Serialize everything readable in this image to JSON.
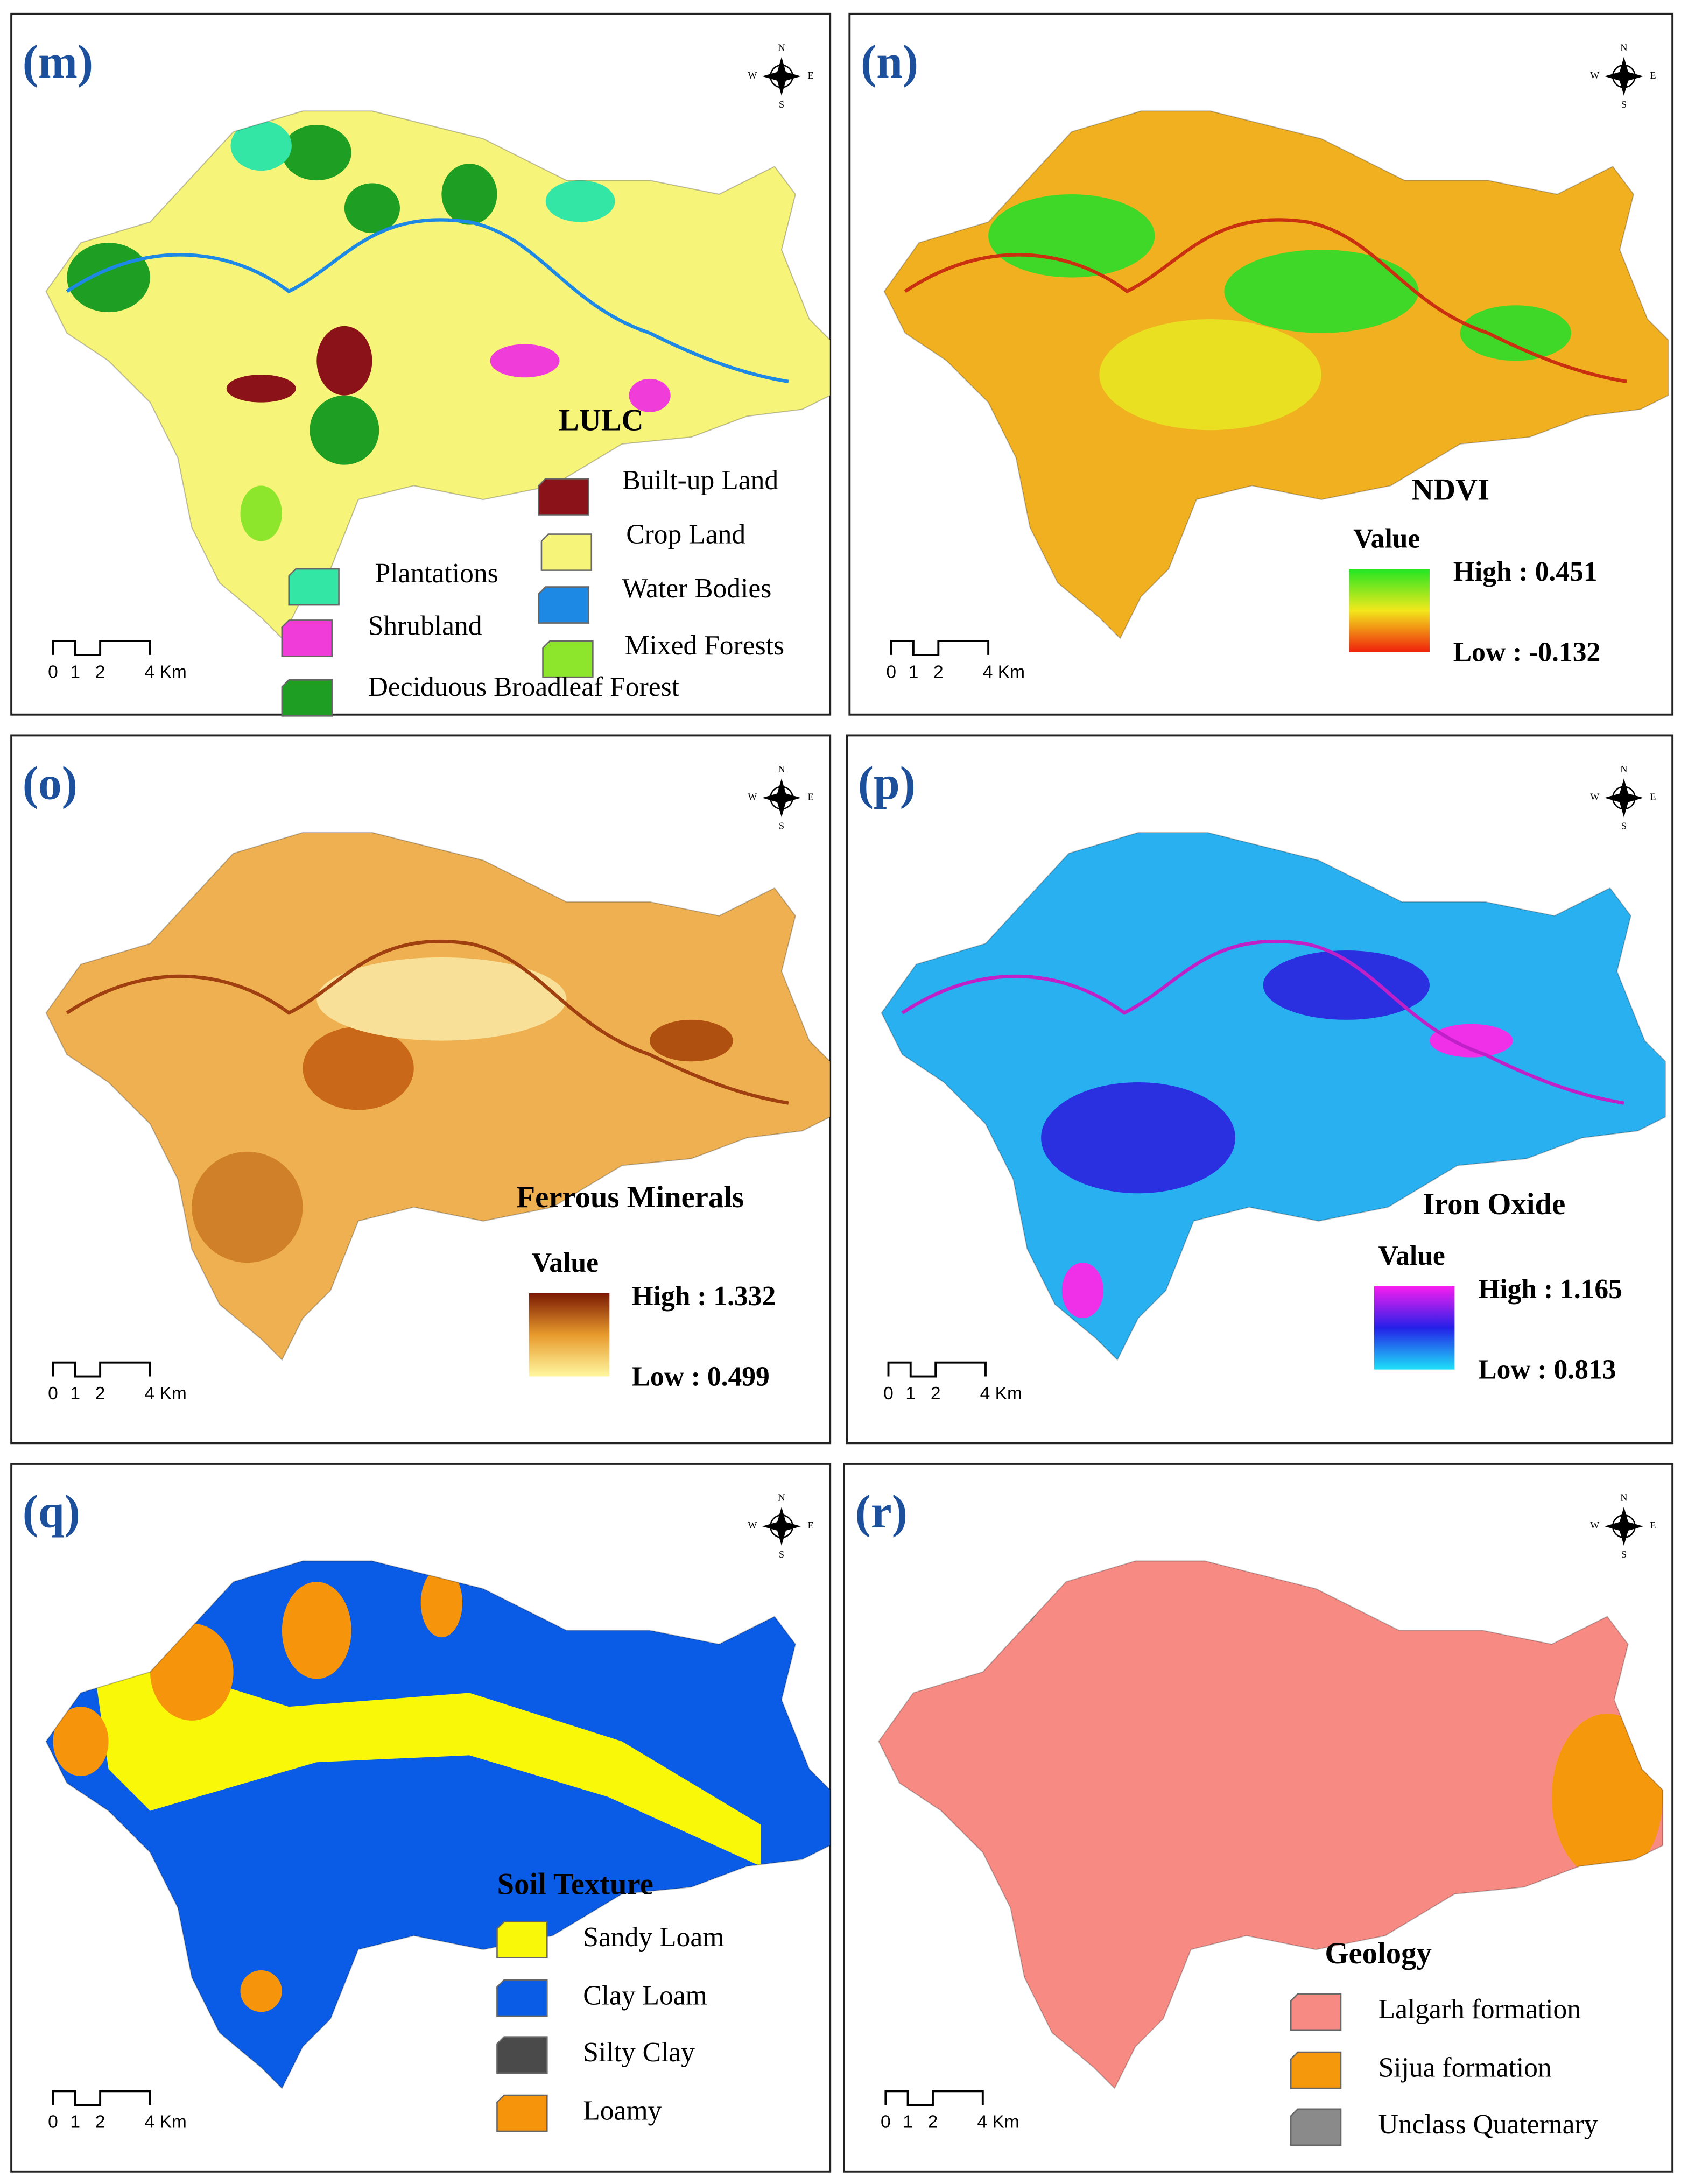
{
  "panels": [
    {
      "label": "(m)",
      "legend": {
        "title": "LULC",
        "items": [
          {
            "label": "Built-up Land",
            "color": "#8b1218"
          },
          {
            "label": "Crop Land",
            "color": "#f7f47a"
          },
          {
            "label": "Water Bodies",
            "color": "#1e88e5"
          },
          {
            "label": "Mixed Forests",
            "color": "#8ee62c"
          },
          {
            "label": "Plantations",
            "color": "#33e6a6"
          },
          {
            "label": "Shrubland",
            "color": "#f03cd8"
          },
          {
            "label": "Deciduous Broadleaf Forest",
            "color": "#1e9e22"
          }
        ]
      },
      "scale": [
        "0",
        "1",
        "2",
        "4 Km"
      ],
      "compass": [
        "N",
        "S",
        "W",
        "E"
      ]
    },
    {
      "label": "(n)",
      "legend": {
        "title": "NDVI",
        "value_title": "Value",
        "high": "High : 0.451",
        "low": "Low : -0.132",
        "colors": [
          "#22e622",
          "#f2e81c",
          "#f0200c"
        ]
      },
      "scale": [
        "0",
        "1",
        "2",
        "4 Km"
      ],
      "compass": [
        "N",
        "S",
        "W",
        "E"
      ]
    },
    {
      "label": "(o)",
      "legend": {
        "title": "Ferrous Minerals",
        "value_title": "Value",
        "high": "High : 1.332",
        "low": "Low : 0.499",
        "colors": [
          "#7a1a04",
          "#e89a2c",
          "#fff7a0"
        ]
      },
      "scale": [
        "0",
        "1",
        "2",
        "4 Km"
      ],
      "compass": [
        "N",
        "S",
        "W",
        "E"
      ]
    },
    {
      "label": "(p)",
      "legend": {
        "title": "Iron Oxide",
        "value_title": "Value",
        "high": "High : 1.165",
        "low": "Low : 0.813",
        "colors": [
          "#f81ef0",
          "#2420e8",
          "#1ee0f8"
        ]
      },
      "scale": [
        "0",
        "1",
        "2",
        "4 Km"
      ],
      "compass": [
        "N",
        "S",
        "W",
        "E"
      ]
    },
    {
      "label": "(q)",
      "legend": {
        "title": "Soil Texture",
        "items": [
          {
            "label": "Sandy Loam",
            "color": "#f8f808"
          },
          {
            "label": "Clay Loam",
            "color": "#0a5ce6"
          },
          {
            "label": "Silty Clay",
            "color": "#4a4a4a"
          },
          {
            "label": "Loamy",
            "color": "#f6940c"
          }
        ]
      },
      "scale": [
        "0",
        "1",
        "2",
        "4 Km"
      ],
      "compass": [
        "N",
        "S",
        "W",
        "E"
      ]
    },
    {
      "label": "(r)",
      "legend": {
        "title": "Geology",
        "items": [
          {
            "label": "Lalgarh formation",
            "color": "#f88a84"
          },
          {
            "label": "Sijua formation",
            "color": "#f6980c"
          },
          {
            "label": "Unclass Quaternary",
            "color": "#8a8a8a"
          }
        ]
      },
      "scale": [
        "0",
        "1",
        "2",
        "4 Km"
      ],
      "compass": [
        "N",
        "S",
        "W",
        "E"
      ]
    }
  ]
}
